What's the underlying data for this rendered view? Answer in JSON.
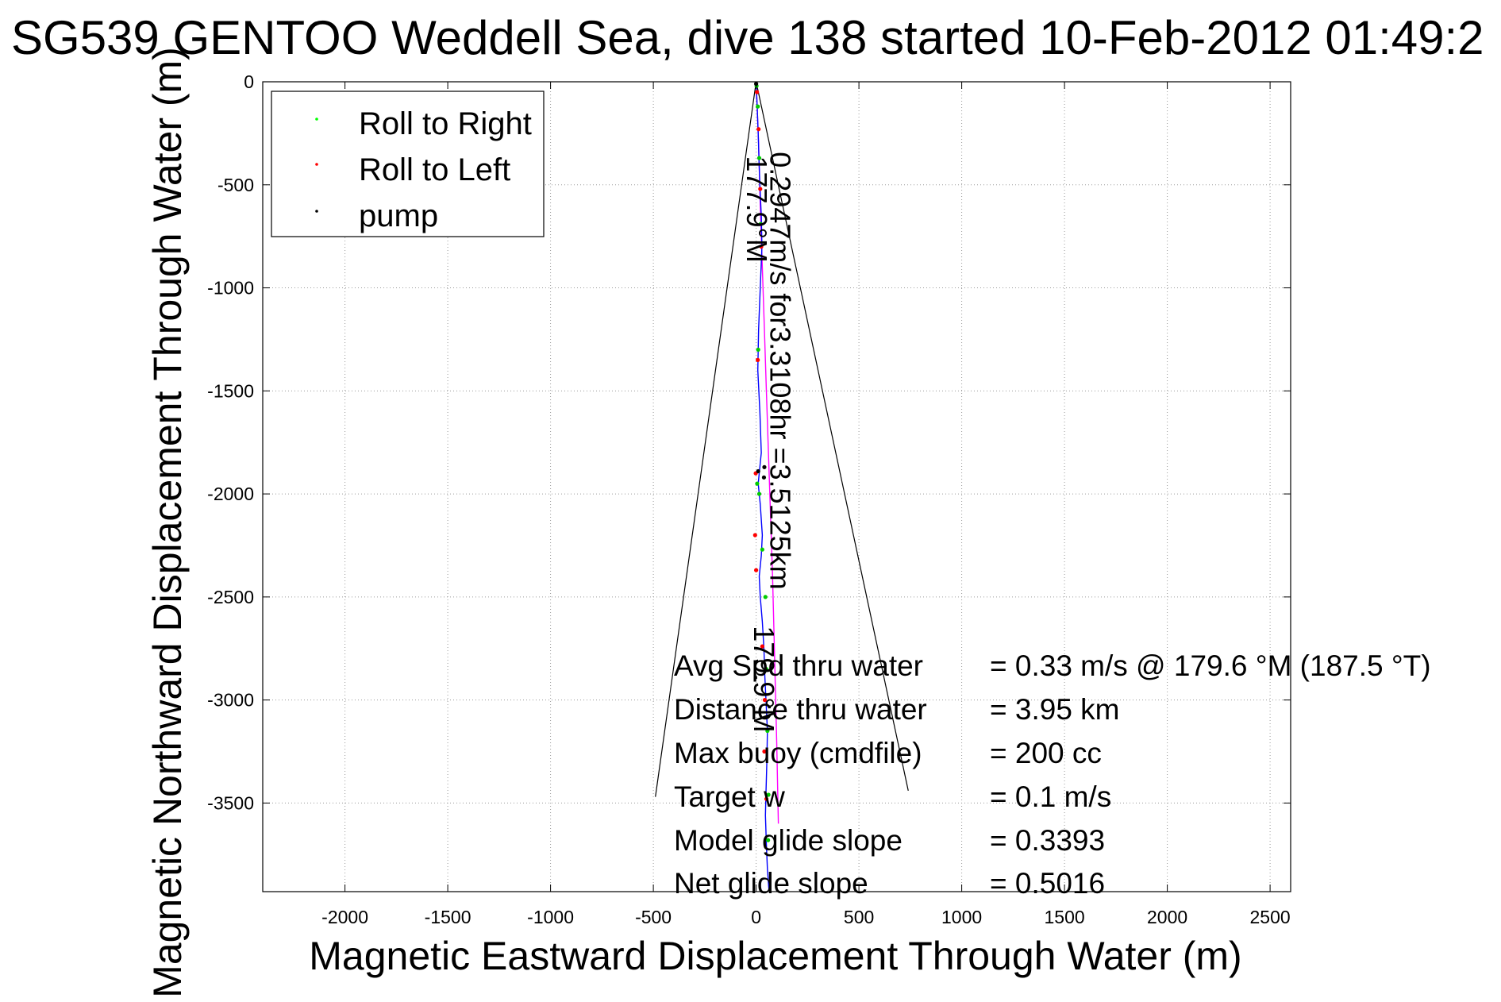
{
  "chart_data": {
    "type": "scatter",
    "title": "SG539 GENTOO Weddell Sea, dive 138 started 10-Feb-2012 01:49:2",
    "xlabel": "Magnetic Eastward Displacement Through Water (m)",
    "ylabel": "Magnetic Northward Displacement Through Water (m)",
    "xlim": [
      -2400,
      2600
    ],
    "ylim": [
      -3930,
      0
    ],
    "xticks": [
      -2000,
      -1500,
      -1000,
      -500,
      0,
      500,
      1000,
      1500,
      2000,
      2500
    ],
    "yticks": [
      0,
      -500,
      -1000,
      -1500,
      -2000,
      -2500,
      -3000,
      -3500
    ],
    "grid": true,
    "legend_position": "top-left",
    "legend": [
      {
        "label": "Roll to Right",
        "color": "#00ff00"
      },
      {
        "label": "Roll to Left",
        "color": "#ff0000"
      },
      {
        "label": "pump",
        "color": "#000000"
      }
    ],
    "track": {
      "color": "#0000ff",
      "x": [
        0,
        5,
        10,
        14,
        18,
        25,
        28,
        20,
        12,
        8,
        18,
        25,
        15,
        10,
        20,
        30,
        25,
        15,
        20,
        30,
        38,
        42,
        48,
        55,
        52,
        48,
        45,
        50,
        55,
        62
      ],
      "y": [
        0,
        -120,
        -250,
        -380,
        -500,
        -650,
        -800,
        -1000,
        -1200,
        -1400,
        -1600,
        -1800,
        -1900,
        -1950,
        -2050,
        -2200,
        -2300,
        -2400,
        -2500,
        -2620,
        -2750,
        -2880,
        -3000,
        -3150,
        -3300,
        -3450,
        -3560,
        -3700,
        -3820,
        -3920
      ]
    },
    "track2": {
      "color": "#ff00ff",
      "x": [
        0,
        12,
        20,
        30,
        40,
        50,
        60,
        70,
        80,
        90,
        100,
        108
      ],
      "y": [
        0,
        -300,
        -600,
        -900,
        -1200,
        -1500,
        -1800,
        -2100,
        -2400,
        -2800,
        -3200,
        -3600
      ]
    },
    "roll_right_points": {
      "x": [
        2,
        8,
        15,
        22,
        10,
        5,
        15,
        30,
        45,
        50,
        55,
        60,
        58
      ],
      "y": [
        -20,
        -120,
        -370,
        -690,
        -1300,
        -1950,
        -2000,
        -2270,
        -2500,
        -2850,
        -3150,
        -3460,
        -3680
      ]
    },
    "roll_left_points": {
      "x": [
        4,
        12,
        20,
        25,
        -2,
        8,
        -5,
        0,
        30,
        42,
        40,
        50
      ],
      "y": [
        -50,
        -230,
        -520,
        -800,
        -1900,
        -1350,
        -2200,
        -2370,
        -2740,
        -3000,
        -3250,
        -3480
      ]
    },
    "pump_points": {
      "x": [
        0,
        10,
        40,
        38
      ],
      "y": [
        -10,
        -1890,
        -1870,
        -1920
      ]
    },
    "cone_lines": [
      {
        "x": [
          0,
          -490
        ],
        "y": [
          0,
          -3470
        ]
      },
      {
        "x": [
          0,
          740
        ],
        "y": [
          0,
          -3440
        ]
      }
    ],
    "annotations": [
      {
        "text": "177.9°M",
        "x": -45,
        "y": -360,
        "rotation": 90
      },
      {
        "text": "0.2947m/s for3.3108hr =3.5125km",
        "x": 70,
        "y": -340,
        "rotation": 90
      },
      {
        "text": "179.9°M",
        "x": -10,
        "y": -2640,
        "rotation": 90
      }
    ]
  },
  "stats": [
    {
      "label": "Avg Spd thru water",
      "value": "=  0.33 m/s @ 179.6 °M (187.5 °T)"
    },
    {
      "label": "Distance thru water",
      "value": "=  3.95 km"
    },
    {
      "label": "Max buoy (cmdfile)",
      "value": "= 200 cc"
    },
    {
      "label": "Target w",
      "value": "= 0.1 m/s"
    },
    {
      "label": "Model glide slope",
      "value": "= 0.3393"
    },
    {
      "label": "Net glide slope",
      "value": "= 0.5016"
    }
  ]
}
